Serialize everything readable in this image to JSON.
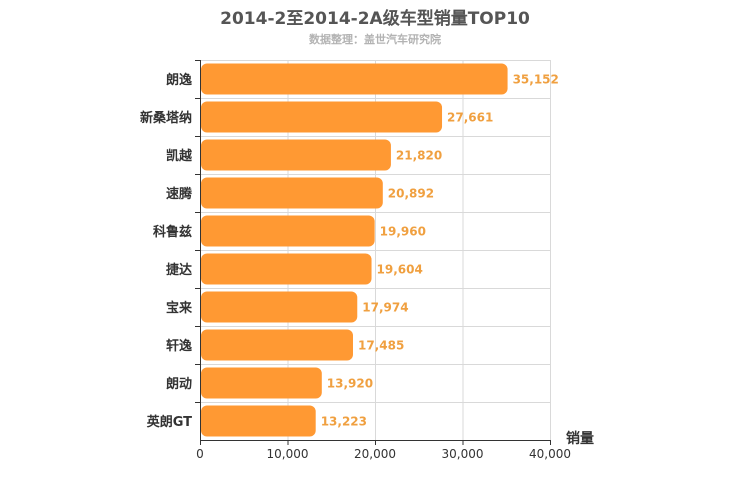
{
  "chart_data": {
    "type": "bar",
    "orientation": "horizontal",
    "title": "2014-2至2014-2A级车型销量TOP10",
    "subtitle": "数据整理：盖世汽车研究院",
    "categories": [
      "朗逸",
      "新桑塔纳",
      "凯越",
      "速腾",
      "科鲁兹",
      "捷达",
      "宝来",
      "轩逸",
      "朗动",
      "英朗GT"
    ],
    "values": [
      35152,
      27661,
      21820,
      20892,
      19960,
      19604,
      17974,
      17485,
      13920,
      13223
    ],
    "value_labels": [
      "35,152",
      "27,661",
      "21,820",
      "20,892",
      "19,960",
      "19,604",
      "17,974",
      "17,485",
      "13,920",
      "13,223"
    ],
    "xlabel": "销量",
    "ylabel": "",
    "xlim": [
      0,
      40000
    ],
    "x_ticks": [
      0,
      10000,
      20000,
      30000,
      40000
    ],
    "x_tick_labels": [
      "0",
      "10,000",
      "20,000",
      "30,000",
      "40,000"
    ],
    "grid": true,
    "colors": {
      "bar": "#ff9933",
      "data_label": "#f0a040",
      "grid": "#d9d9d9",
      "axis": "#333333"
    }
  }
}
